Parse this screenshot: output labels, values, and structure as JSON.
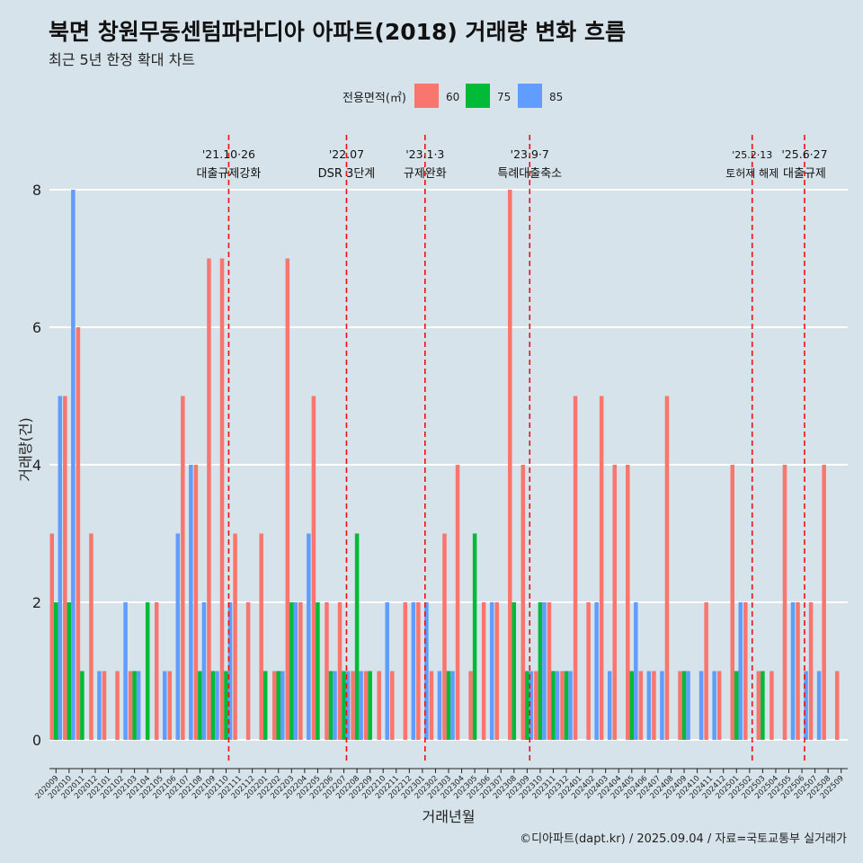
{
  "title": "북면 창원무동센텀파라디아 아파트(2018) 거래량 변화 흐름",
  "subtitle": "최근 5년 한정 확대 차트",
  "caption": "©디아파트(dapt.kr) / 2025.09.04 / 자료=국토교통부 실거래가",
  "colors": {
    "60": "#f8766d",
    "75": "#00ba38",
    "85": "#619cff",
    "grid": "#ffffff",
    "event": "#ee1111",
    "background": "#d6e3ea"
  },
  "chart_data": {
    "type": "bar",
    "xlabel": "거래년월",
    "ylabel": "거래량(건)",
    "ylim": [
      0,
      8.4
    ],
    "yticks": [
      0,
      2,
      4,
      6,
      8
    ],
    "legend": {
      "title": "전용면적(㎡)",
      "position": "top"
    },
    "months": [
      "202009",
      "202010",
      "202011",
      "202012",
      "202101",
      "202102",
      "202103",
      "202104",
      "202105",
      "202106",
      "202107",
      "202108",
      "202109",
      "202110",
      "202111",
      "202112",
      "202201",
      "202202",
      "202203",
      "202204",
      "202205",
      "202206",
      "202207",
      "202208",
      "202209",
      "202210",
      "202211",
      "202212",
      "202301",
      "202302",
      "202303",
      "202304",
      "202305",
      "202306",
      "202307",
      "202308",
      "202309",
      "202310",
      "202311",
      "202312",
      "202401",
      "202402",
      "202403",
      "202404",
      "202405",
      "202406",
      "202407",
      "202408",
      "202409",
      "202410",
      "202411",
      "202412",
      "202501",
      "202502",
      "202503",
      "202504",
      "202505",
      "202506",
      "202507",
      "202508",
      "202509"
    ],
    "series": [
      {
        "name": "60",
        "values": [
          3,
          5,
          6,
          3,
          1,
          1,
          1,
          0,
          2,
          1,
          5,
          4,
          7,
          7,
          3,
          2,
          3,
          1,
          7,
          2,
          5,
          2,
          2,
          1,
          1,
          1,
          1,
          2,
          2,
          1,
          3,
          4,
          1,
          2,
          2,
          8,
          4,
          1,
          2,
          1,
          5,
          2,
          5,
          4,
          4,
          1,
          1,
          5,
          1,
          0,
          2,
          1,
          4,
          2,
          1,
          1,
          4,
          2,
          2,
          4,
          1
        ]
      },
      {
        "name": "75",
        "values": [
          2,
          2,
          1,
          0,
          0,
          0,
          1,
          2,
          0,
          0,
          0,
          1,
          1,
          1,
          0,
          0,
          1,
          1,
          2,
          0,
          2,
          1,
          1,
          3,
          1,
          0,
          0,
          0,
          0,
          0,
          1,
          0,
          3,
          0,
          0,
          2,
          1,
          2,
          1,
          1,
          0,
          0,
          0,
          0,
          1,
          0,
          0,
          0,
          1,
          0,
          0,
          0,
          1,
          0,
          1,
          0,
          0,
          0,
          0,
          0,
          0
        ]
      },
      {
        "name": "85",
        "values": [
          5,
          8,
          0,
          1,
          0,
          2,
          1,
          0,
          1,
          3,
          4,
          2,
          1,
          2,
          0,
          0,
          0,
          1,
          2,
          3,
          0,
          1,
          1,
          1,
          0,
          2,
          0,
          2,
          2,
          1,
          1,
          0,
          0,
          2,
          0,
          0,
          1,
          2,
          1,
          1,
          0,
          2,
          1,
          0,
          2,
          1,
          1,
          0,
          1,
          1,
          1,
          0,
          2,
          0,
          0,
          0,
          2,
          1,
          1,
          0,
          0
        ]
      }
    ],
    "events": [
      {
        "month_index": 13.2,
        "date": "'21.10·26",
        "label": "대출규제강화"
      },
      {
        "month_index": 22.2,
        "date": "'22.07",
        "label": "DSR 3단계"
      },
      {
        "month_index": 28.2,
        "date": "'23.1·3",
        "label": "규제완화"
      },
      {
        "month_index": 36.2,
        "date": "'23.9·7",
        "label": "특례대출축소"
      },
      {
        "month_index": 53.2,
        "date": "'25.2·13",
        "label": "토허제 해제"
      },
      {
        "month_index": 57.2,
        "date": "'25.6·27",
        "label": "대출규제"
      }
    ]
  }
}
